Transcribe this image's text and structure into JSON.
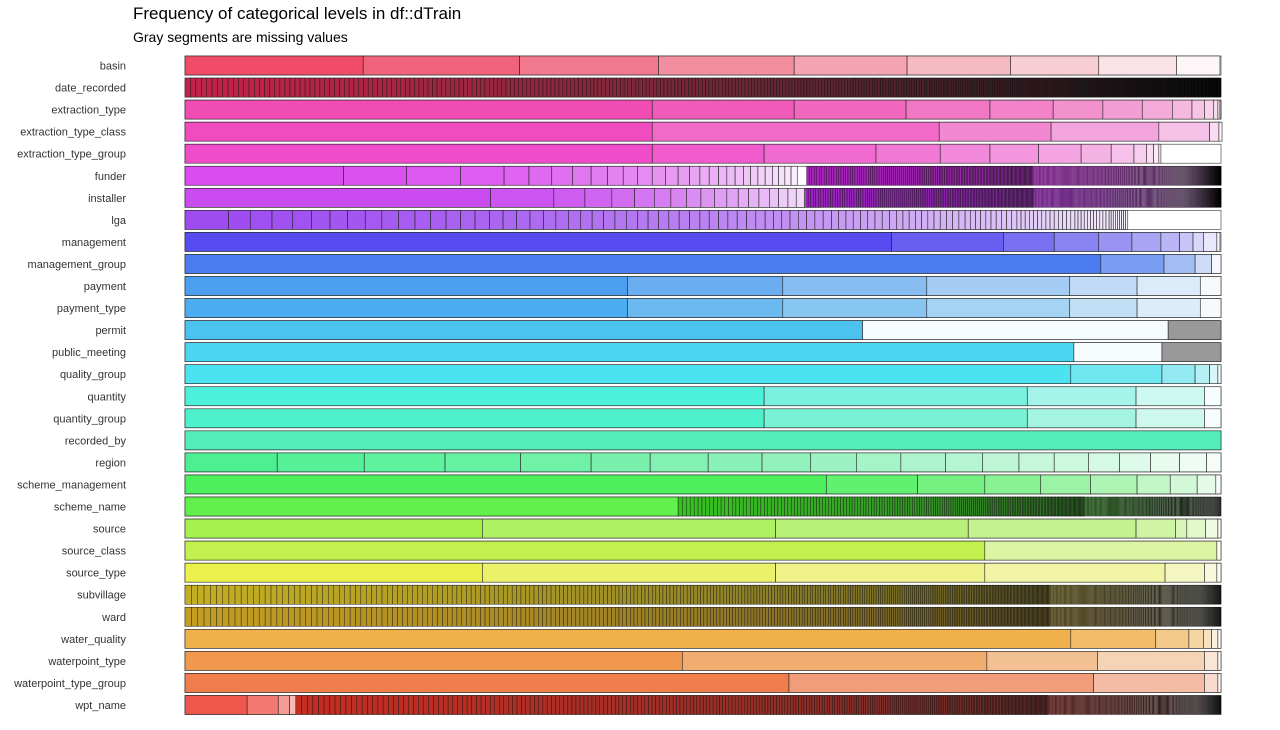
{
  "chart_data": {
    "type": "bar",
    "orientation": "horizontal",
    "stacked": true,
    "normalized": true,
    "title": "Frequency of categorical levels in df::dTrain",
    "subtitle": "Gray segments are missing values",
    "xlabel": "",
    "ylabel": "",
    "grid": false,
    "legend": "none",
    "missing_color": "#999999",
    "rows": [
      {
        "name": "basin",
        "hue": 350,
        "segments": [
          17.2,
          15.1,
          13.4,
          13.1,
          10.9,
          10.0,
          8.5,
          7.5,
          4.2
        ]
      },
      {
        "name": "date_recorded",
        "hue": 346,
        "segments": [],
        "gradient_start": 0.0,
        "base": 0.12,
        "decay": 0.996,
        "n_levels": 356
      },
      {
        "name": "extraction_type",
        "hue": 322,
        "segments": [
          45.1,
          13.7,
          10.8,
          8.1,
          6.1,
          4.8,
          3.8,
          2.9,
          1.9,
          1.2,
          0.9,
          0.4,
          0.2,
          0.1
        ]
      },
      {
        "name": "extraction_type_class",
        "hue": 318,
        "segments": [
          45.1,
          27.7,
          10.8,
          10.4,
          4.9,
          0.9,
          0.3
        ]
      },
      {
        "name": "extraction_type_group",
        "hue": 314,
        "segments": [
          45.1,
          10.8,
          10.8,
          6.2,
          4.8,
          4.7,
          4.1,
          2.9,
          2.2,
          1.2,
          0.7,
          0.5,
          0.2
        ]
      },
      {
        "name": "funder",
        "hue": 292,
        "segments": [
          15.3,
          6.1,
          5.2,
          4.2,
          2.4,
          2.2,
          2.0,
          1.8,
          1.6,
          1.5,
          1.4,
          1.4,
          1.3,
          1.2,
          1.1,
          1.0,
          0.9,
          0.9,
          0.8,
          0.8,
          0.8,
          0.7,
          0.7,
          0.7,
          0.7,
          0.6,
          0.6,
          0.6,
          0.6
        ],
        "gradient_start": 60.0,
        "base": 0.12,
        "decay": 0.994,
        "n_levels": 600
      },
      {
        "name": "installer",
        "hue": 286,
        "segments": [
          29.5,
          6.1,
          3.0,
          2.6,
          2.2,
          1.9,
          1.6,
          1.5,
          1.4,
          1.3,
          1.2,
          1.1,
          1.0,
          1.0,
          1.0,
          0.9,
          0.9,
          0.8,
          0.8,
          0.8,
          0.8
        ],
        "gradient_start": 59.9,
        "base": 0.1,
        "decay": 0.994,
        "n_levels": 600
      },
      {
        "name": "lga",
        "hue": 270,
        "segments": [
          4.2,
          2.1,
          2.1,
          2.0,
          1.8,
          1.8,
          1.7,
          1.7,
          1.6,
          1.6,
          1.6,
          1.5,
          1.5,
          1.4,
          1.4,
          1.4,
          1.3,
          1.3,
          1.3,
          1.3,
          1.2,
          1.2,
          1.2,
          1.1,
          1.1,
          1.1,
          1.1,
          1.1,
          1.0,
          1.0,
          1.0,
          1.0,
          1.0,
          1.0,
          0.9,
          0.9,
          0.9,
          0.9,
          0.9,
          0.9,
          0.9,
          0.8,
          0.8,
          0.8,
          0.8,
          0.8,
          0.8,
          0.8,
          0.8,
          0.7,
          0.7,
          0.7,
          0.7,
          0.7,
          0.7,
          0.7,
          0.7,
          0.7,
          0.6,
          0.6,
          0.6,
          0.6,
          0.6,
          0.6,
          0.6,
          0.6,
          0.6,
          0.6,
          0.6,
          0.5,
          0.5,
          0.5,
          0.5,
          0.5,
          0.5,
          0.5,
          0.5,
          0.5,
          0.5,
          0.4,
          0.4,
          0.4,
          0.4,
          0.4,
          0.4,
          0.4,
          0.4,
          0.4,
          0.4,
          0.4,
          0.4,
          0.4,
          0.4,
          0.3,
          0.3,
          0.3,
          0.3,
          0.3,
          0.3,
          0.3,
          0.3,
          0.3,
          0.3,
          0.3,
          0.2,
          0.2,
          0.2,
          0.2,
          0.2,
          0.2,
          0.2,
          0.2,
          0.2
        ]
      },
      {
        "name": "management",
        "hue": 244,
        "segments": [
          68.2,
          10.8,
          4.9,
          4.3,
          3.2,
          2.8,
          1.8,
          1.3,
          1.0,
          1.3,
          0.3
        ]
      },
      {
        "name": "management_group",
        "hue": 222,
        "segments": [
          88.4,
          6.1,
          3.0,
          1.6,
          0.9
        ]
      },
      {
        "name": "payment",
        "hue": 210,
        "segments": [
          42.7,
          15.0,
          13.9,
          13.8,
          6.5,
          6.1,
          2.0
        ]
      },
      {
        "name": "payment_type",
        "hue": 205,
        "segments": [
          42.7,
          15.0,
          13.9,
          13.8,
          6.5,
          6.1,
          2.0
        ]
      },
      {
        "name": "permit",
        "hue": 197,
        "segments": [
          65.4,
          29.5
        ],
        "missing": 5.1
      },
      {
        "name": "public_meeting",
        "hue": 190,
        "segments": [
          85.8,
          8.5
        ],
        "missing": 5.7
      },
      {
        "name": "quality_group",
        "hue": 185,
        "segments": [
          85.5,
          8.8,
          3.2,
          1.4,
          0.8,
          0.3
        ]
      },
      {
        "name": "quantity",
        "hue": 172,
        "segments": [
          55.9,
          25.4,
          10.5,
          6.6,
          1.6
        ]
      },
      {
        "name": "quantity_group",
        "hue": 166,
        "segments": [
          55.9,
          25.4,
          10.5,
          6.6,
          1.6
        ]
      },
      {
        "name": "recorded_by",
        "hue": 160,
        "segments": [
          100.0
        ]
      },
      {
        "name": "region",
        "hue": 146,
        "segments": [
          8.9,
          8.4,
          7.8,
          7.3,
          6.8,
          5.7,
          5.6,
          5.2,
          4.7,
          4.4,
          4.3,
          4.3,
          3.6,
          3.5,
          3.4,
          3.3,
          3.0,
          3.0,
          2.8,
          2.6,
          1.4
        ]
      },
      {
        "name": "scheme_management",
        "hue": 126,
        "segments": [
          61.9,
          8.8,
          6.5,
          5.4,
          4.8,
          4.5,
          3.2,
          2.6,
          1.8,
          0.5
        ]
      },
      {
        "name": "scheme_name",
        "hue": 112,
        "segments": [
          47.6
        ],
        "gradient_start": 47.6,
        "base": 0.45,
        "decay": 0.993,
        "n_levels": 400
      },
      {
        "name": "source",
        "hue": 88,
        "segments": [
          28.7,
          28.3,
          18.6,
          16.2,
          3.8,
          1.1,
          1.8,
          1.2,
          0.3
        ]
      },
      {
        "name": "source_class",
        "hue": 77,
        "segments": [
          77.2,
          22.4,
          0.4
        ]
      },
      {
        "name": "source_type",
        "hue": 62,
        "segments": [
          28.7,
          28.3,
          20.2,
          17.4,
          3.8,
          1.2,
          0.4
        ]
      },
      {
        "name": "subvillage",
        "hue": 52,
        "segments": [],
        "gradient_start": 0.0,
        "base": 0.2,
        "decay": 0.994,
        "n_levels": 600
      },
      {
        "name": "ward",
        "hue": 46,
        "segments": [],
        "gradient_start": 0.0,
        "base": 0.12,
        "decay": 0.994,
        "n_levels": 600
      },
      {
        "name": "water_quality",
        "hue": 37,
        "segments": [
          85.5,
          8.2,
          3.2,
          1.4,
          0.8,
          0.6,
          0.3
        ]
      },
      {
        "name": "waterpoint_type",
        "hue": 28,
        "segments": [
          48.0,
          29.4,
          10.7,
          10.3,
          1.3,
          0.3
        ]
      },
      {
        "name": "waterpoint_type_group",
        "hue": 18,
        "segments": [
          58.3,
          29.4,
          10.7,
          1.3,
          0.3
        ]
      },
      {
        "name": "wpt_name",
        "hue": 4,
        "segments": [
          6.0,
          3.0,
          1.1,
          0.6
        ],
        "gradient_start": 10.7,
        "base": 0.2,
        "decay": 0.994,
        "n_levels": 600
      }
    ]
  }
}
